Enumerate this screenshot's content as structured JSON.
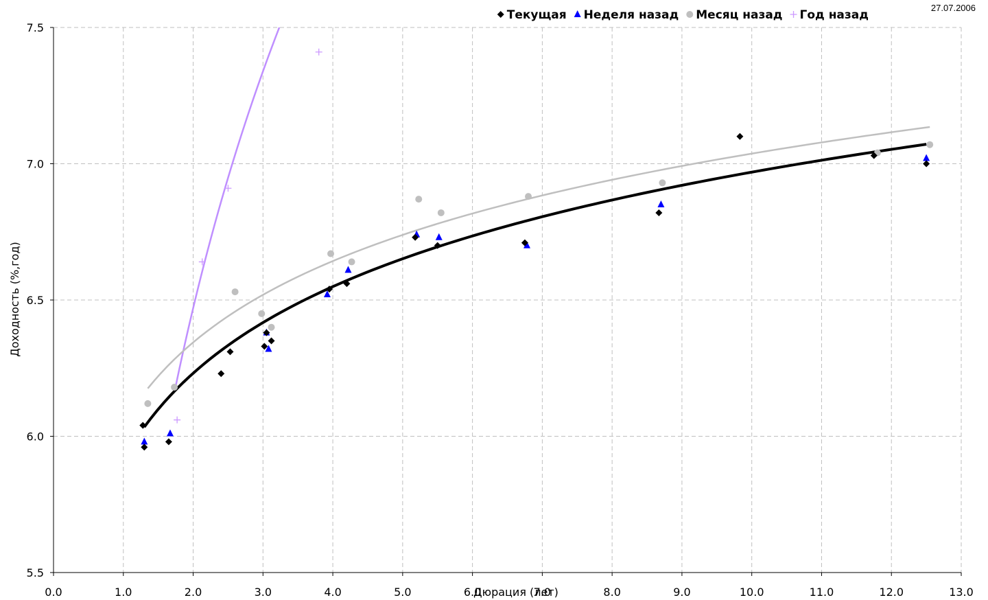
{
  "chart_data": {
    "type": "scatter",
    "date": "27.07.2006",
    "xlabel": "Дюрация (лет)",
    "ylabel": "Доходность (%,год)",
    "xlim": [
      0,
      13
    ],
    "ylim": [
      5.5,
      7.5
    ],
    "x_ticks": [
      "0.0",
      "1.0",
      "2.0",
      "3.0",
      "4.0",
      "5.0",
      "6.0",
      "7.0",
      "8.0",
      "9.0",
      "10.0",
      "11.0",
      "12.0",
      "13.0"
    ],
    "y_ticks": [
      "5.5",
      "6.0",
      "6.5",
      "7.0",
      "7.5"
    ],
    "grid": true,
    "legend_position": "top-right",
    "series": [
      {
        "name": "Текущая",
        "marker": "diamond",
        "color": "#000000",
        "points": [
          [
            1.28,
            6.04
          ],
          [
            1.3,
            5.96
          ],
          [
            1.65,
            5.98
          ],
          [
            2.4,
            6.23
          ],
          [
            2.53,
            6.31
          ],
          [
            3.02,
            6.33
          ],
          [
            3.05,
            6.38
          ],
          [
            3.12,
            6.35
          ],
          [
            3.95,
            6.54
          ],
          [
            4.2,
            6.56
          ],
          [
            5.18,
            6.73
          ],
          [
            5.5,
            6.7
          ],
          [
            6.75,
            6.71
          ],
          [
            8.67,
            6.82
          ],
          [
            9.83,
            7.1
          ],
          [
            11.75,
            7.03
          ],
          [
            12.5,
            7.0
          ]
        ],
        "trend": {
          "a": 5.9136,
          "b": 0.4584,
          "from": 1.3,
          "to": 12.5,
          "color": "#000000"
        }
      },
      {
        "name": "Неделя назад",
        "marker": "triangle",
        "color": "#0000ff",
        "points": [
          [
            1.3,
            5.98
          ],
          [
            1.67,
            6.01
          ],
          [
            3.05,
            6.38
          ],
          [
            3.08,
            6.32
          ],
          [
            3.92,
            6.52
          ],
          [
            4.22,
            6.61
          ],
          [
            5.2,
            6.74
          ],
          [
            5.52,
            6.73
          ],
          [
            6.78,
            6.7
          ],
          [
            8.7,
            6.85
          ],
          [
            12.5,
            7.02
          ]
        ],
        "trend": {
          "a": 5.9136,
          "b": 0.4584,
          "from": 1.3,
          "to": 12.5,
          "color": "#0000ff"
        }
      },
      {
        "name": "Месяц назад",
        "marker": "circle",
        "color": "#bfbfbf",
        "points": [
          [
            1.35,
            6.12
          ],
          [
            1.73,
            6.18
          ],
          [
            2.6,
            6.53
          ],
          [
            2.98,
            6.45
          ],
          [
            3.12,
            6.4
          ],
          [
            3.97,
            6.67
          ],
          [
            4.27,
            6.64
          ],
          [
            5.23,
            6.87
          ],
          [
            5.55,
            6.82
          ],
          [
            6.8,
            6.88
          ],
          [
            8.72,
            6.93
          ],
          [
            11.8,
            7.04
          ],
          [
            12.55,
            7.07
          ]
        ],
        "trend": {
          "a": 6.0463,
          "b": 0.4303,
          "from": 1.35,
          "to": 12.55,
          "color": "#bfbfbf"
        }
      },
      {
        "name": "Год назад",
        "marker": "plus",
        "color": "#cc99ff",
        "points": [
          [
            1.77,
            6.06
          ],
          [
            2.13,
            6.64
          ],
          [
            2.5,
            6.91
          ],
          [
            3.8,
            7.41
          ]
        ],
        "trend": {
          "a": 4.9848,
          "b": 2.1432,
          "from": 1.75,
          "to": 3.72,
          "color": "#bf8fff"
        }
      }
    ]
  }
}
